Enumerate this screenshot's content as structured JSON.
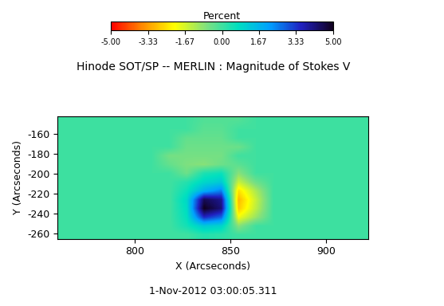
{
  "chart_data": {
    "type": "heatmap",
    "title": "Hinode SOT/SP -- MERLIN : Magnitude of Stokes V",
    "x_label": "X (Arcseconds)",
    "y_label": "Y (Arcseconds)",
    "annotation": "1-Nov-2012 03:00:05.311",
    "xlim": [
      760,
      922
    ],
    "ylim": [
      -265,
      -142
    ],
    "xticks": [
      800,
      850,
      900
    ],
    "yticks": [
      -160,
      -180,
      -200,
      -220,
      -240,
      -260
    ],
    "cells": [
      [
        0,
        0,
        0,
        0,
        0,
        0,
        0,
        0,
        -0.2,
        -0.2,
        -0.2,
        0,
        0,
        0,
        0,
        0,
        0,
        0
      ],
      [
        0,
        0,
        0,
        0,
        0,
        0,
        0,
        0,
        -0.3,
        -0.3,
        0,
        0,
        0,
        0,
        0,
        0,
        0,
        0
      ],
      [
        0,
        0,
        0,
        0,
        0,
        0,
        0,
        -0.4,
        -0.4,
        -0.4,
        0,
        0,
        0,
        0,
        0,
        0,
        0,
        0
      ],
      [
        0,
        0,
        0,
        0,
        0,
        0,
        0,
        -0.5,
        -0.5,
        -0.5,
        -0.5,
        0,
        0,
        0,
        0,
        0,
        0,
        0
      ],
      [
        0,
        0,
        0,
        0,
        0,
        0,
        -0.6,
        -0.6,
        -0.6,
        -0.6,
        0,
        0,
        0,
        0,
        0,
        0,
        0,
        0
      ],
      [
        0,
        0,
        0,
        0,
        0,
        0,
        -0.4,
        -0.7,
        -0.8,
        -0.5,
        -0.3,
        0,
        0,
        0,
        0,
        0,
        0,
        0
      ],
      [
        0,
        0,
        0,
        0,
        0,
        0,
        0,
        -0.5,
        0.4,
        0.6,
        -0.8,
        0,
        0,
        0,
        0,
        0,
        0,
        0
      ],
      [
        0,
        0,
        0,
        0,
        0,
        0,
        0,
        0.3,
        0.9,
        1.2,
        -1.5,
        -0.5,
        0,
        0,
        0,
        0,
        0,
        0
      ],
      [
        0,
        0,
        0,
        0,
        0,
        0,
        0,
        0.6,
        1.8,
        2.5,
        -2.5,
        -1.2,
        0,
        0,
        0,
        0,
        0,
        0
      ],
      [
        0,
        0,
        0,
        0,
        0,
        0,
        0,
        0.9,
        4.5,
        4.0,
        -3.0,
        -1.5,
        0,
        0,
        0,
        0,
        0,
        0
      ],
      [
        0,
        0,
        0,
        0,
        0,
        0,
        0,
        0.8,
        5.0,
        4.2,
        -2.8,
        -1.4,
        0,
        0,
        0,
        0,
        0,
        0
      ],
      [
        0,
        0,
        0,
        0,
        0,
        0,
        0,
        0.7,
        3.5,
        2.8,
        -2.0,
        -1.0,
        0,
        0,
        0,
        0,
        0,
        0
      ],
      [
        0,
        0,
        0,
        0,
        0,
        0,
        0,
        0.5,
        1.2,
        1.0,
        -0.8,
        0,
        0,
        0,
        0,
        0,
        0,
        0
      ],
      [
        0,
        0,
        0,
        0,
        0,
        0,
        0,
        0,
        0.3,
        0.2,
        0,
        0,
        0,
        0,
        0,
        0,
        0,
        0
      ]
    ],
    "colorbar": {
      "label": "Percent",
      "range": [
        -5,
        5
      ],
      "ticks": [
        {
          "value": -5,
          "label": "-5.00"
        },
        -3.33,
        -1.67,
        {
          "value": 0,
          "label": "0.00"
        },
        1.67,
        3.33,
        {
          "value": 5,
          "label": "5.00"
        }
      ]
    }
  }
}
